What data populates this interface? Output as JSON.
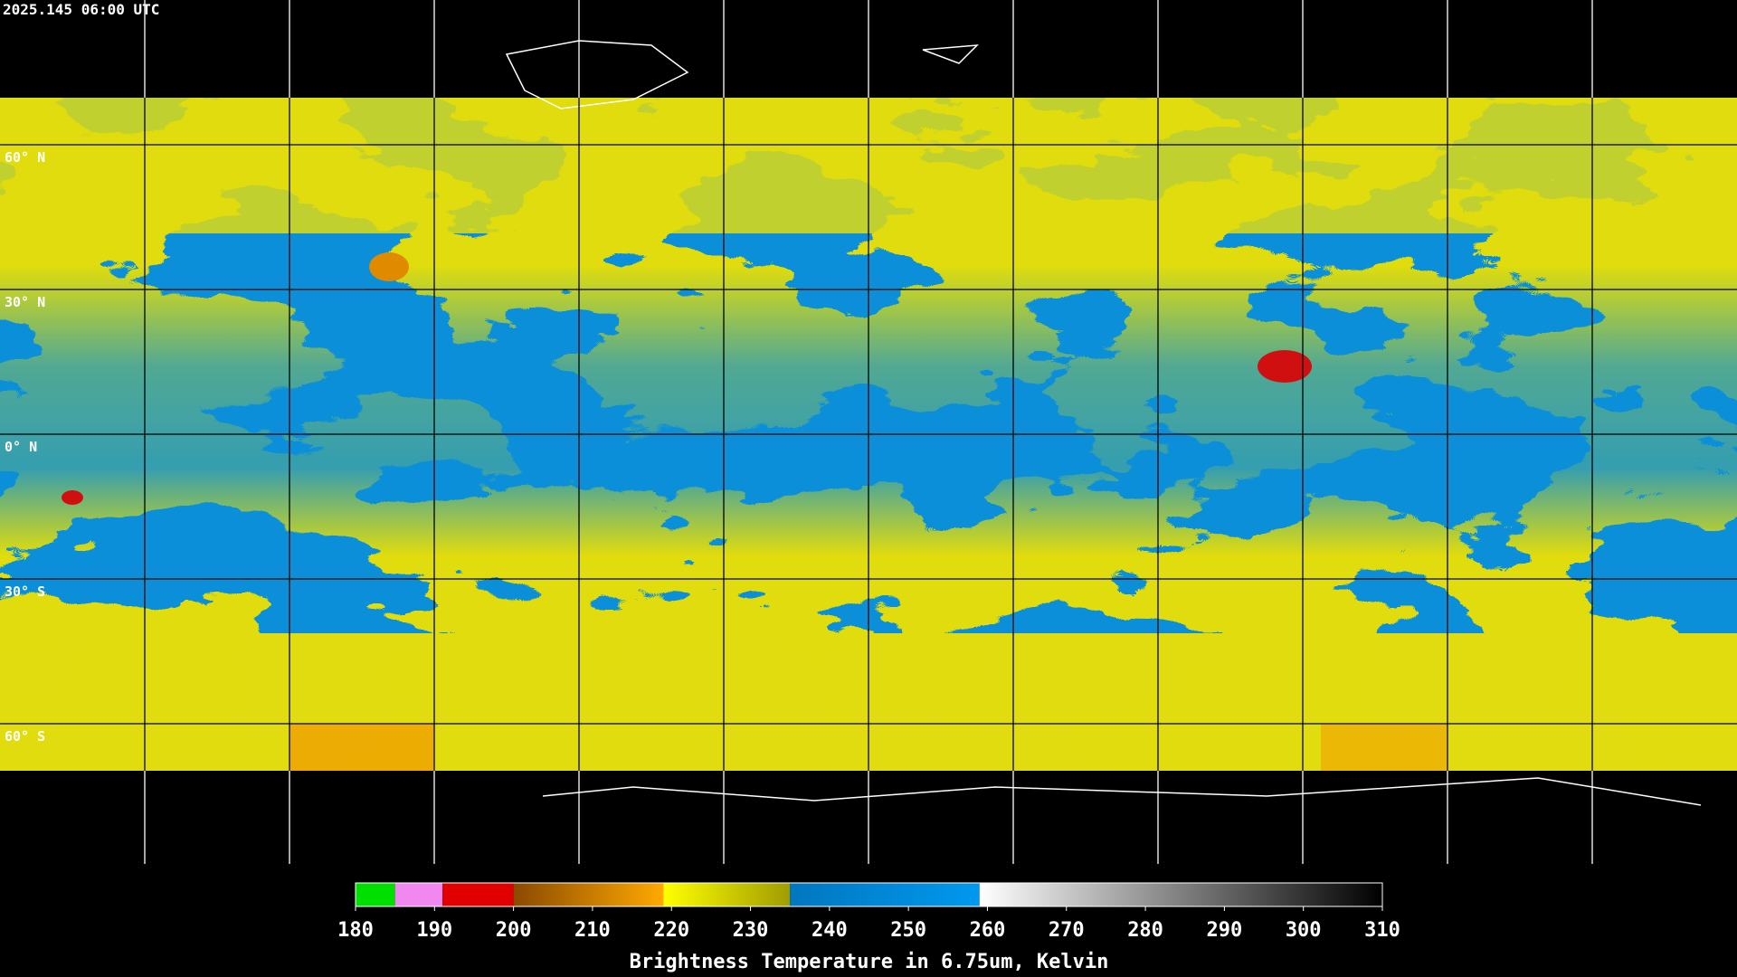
{
  "header": {
    "title": "2025.145 06:00 UTC"
  },
  "map": {
    "latitudes": [
      {
        "value": 60,
        "label": "60° N"
      },
      {
        "value": 30,
        "label": "30° N"
      },
      {
        "value": 0,
        "label": "0° N"
      },
      {
        "value": -30,
        "label": "30° S"
      },
      {
        "value": -60,
        "label": "60° S"
      }
    ]
  },
  "colorbar": {
    "range": [
      180,
      310
    ],
    "ticks": [
      180,
      190,
      200,
      210,
      220,
      230,
      240,
      250,
      260,
      270,
      280,
      290,
      300,
      310
    ],
    "label": "Brightness Temperature in 6.75um, Kelvin",
    "segments": [
      {
        "from": 180,
        "to": 185,
        "colors": [
          "#00e000",
          "#00e000"
        ]
      },
      {
        "from": 185,
        "to": 191,
        "colors": [
          "#f088f0",
          "#f088f0"
        ]
      },
      {
        "from": 191,
        "to": 200,
        "colors": [
          "#e00000",
          "#e00000"
        ]
      },
      {
        "from": 200,
        "to": 219,
        "colors": [
          "#8a4a00",
          "#ffaa00"
        ]
      },
      {
        "from": 219,
        "to": 235,
        "colors": [
          "#ffff00",
          "#a09c00"
        ]
      },
      {
        "from": 235,
        "to": 259,
        "colors": [
          "#0077bf",
          "#0099ee"
        ]
      },
      {
        "from": 259,
        "to": 310,
        "colors": [
          "#ffffff",
          "#000000"
        ]
      }
    ]
  }
}
